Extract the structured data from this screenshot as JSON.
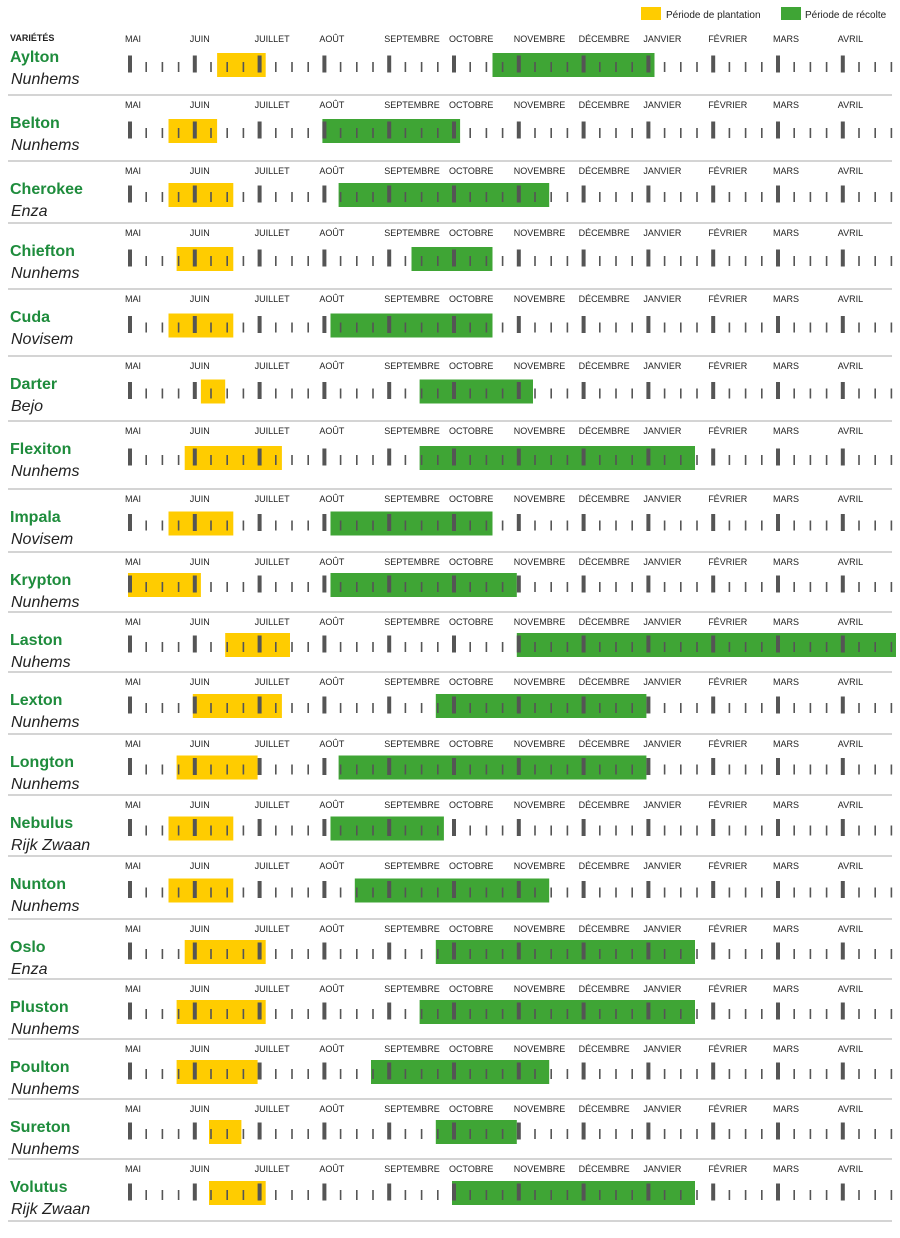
{
  "colors": {
    "planting": "#FFCC00",
    "harvest": "#3FA535",
    "variety_text": "#1E8C3C",
    "tick": "#555555",
    "separator": "#BBBBBB"
  },
  "legend": {
    "planting_label": "Période de plantation",
    "harvest_label": "Période de récolte"
  },
  "header_label": "VARIÉTÉS",
  "chart_data": {
    "type": "gantt",
    "months": [
      "MAI",
      "JUIN",
      "JUILLET",
      "AOÛT",
      "SEPTEMBRE",
      "OCTOBRE",
      "NOVEMBRE",
      "DÉCEMBRE",
      "JANVIER",
      "FÉVRIER",
      "MARS",
      "AVRIL"
    ],
    "unit": "week index from start of May (4 weeks per month, 48 weeks total)",
    "rows": [
      {
        "variety": "Aylton",
        "supplier": "Nunhems",
        "planting": [
          5.5,
          8.5
        ],
        "harvest": [
          22.5,
          32.5
        ]
      },
      {
        "variety": "Belton",
        "supplier": "Nunhems",
        "planting": [
          2.5,
          5.5
        ],
        "harvest": [
          12,
          20.5
        ]
      },
      {
        "variety": "Cherokee",
        "supplier": "Enza",
        "planting": [
          2.5,
          6.5
        ],
        "harvest": [
          13,
          26
        ]
      },
      {
        "variety": "Chiefton",
        "supplier": "Nunhems",
        "planting": [
          3,
          6.5
        ],
        "harvest": [
          17.5,
          22.5
        ]
      },
      {
        "variety": "Cuda",
        "supplier": "Novisem",
        "planting": [
          2.5,
          6.5
        ],
        "harvest": [
          12.5,
          22.5
        ]
      },
      {
        "variety": "Darter",
        "supplier": "Bejo",
        "planting": [
          4.5,
          6
        ],
        "harvest": [
          18,
          25
        ]
      },
      {
        "variety": "Flexiton",
        "supplier": "Nunhems",
        "planting": [
          3.5,
          9.5
        ],
        "harvest": [
          18,
          35
        ]
      },
      {
        "variety": "Impala",
        "supplier": "Novisem",
        "planting": [
          2.5,
          6.5
        ],
        "harvest": [
          12.5,
          22.5
        ]
      },
      {
        "variety": "Krypton",
        "supplier": "Nunhems",
        "planting": [
          0,
          4.5
        ],
        "harvest": [
          12.5,
          24
        ]
      },
      {
        "variety": "Laston",
        "supplier": "Nuhems",
        "planting": [
          6,
          10
        ],
        "harvest": [
          24,
          48
        ]
      },
      {
        "variety": "Lexton",
        "supplier": "Nunhems",
        "planting": [
          4,
          9.5
        ],
        "harvest": [
          19,
          32
        ]
      },
      {
        "variety": "Longton",
        "supplier": "Nunhems",
        "planting": [
          3,
          8
        ],
        "harvest": [
          13,
          32
        ]
      },
      {
        "variety": "Nebulus",
        "supplier": "Rijk Zwaan",
        "planting": [
          2.5,
          6.5
        ],
        "harvest": [
          12.5,
          19.5
        ]
      },
      {
        "variety": "Nunton",
        "supplier": "Nunhems",
        "planting": [
          2.5,
          6.5
        ],
        "harvest": [
          14,
          26
        ]
      },
      {
        "variety": "Oslo",
        "supplier": "Enza",
        "planting": [
          3.5,
          8.5
        ],
        "harvest": [
          19,
          35
        ]
      },
      {
        "variety": "Pluston",
        "supplier": "Nunhems",
        "planting": [
          3,
          8.5
        ],
        "harvest": [
          18,
          35
        ]
      },
      {
        "variety": "Poulton",
        "supplier": "Nunhems",
        "planting": [
          3,
          8
        ],
        "harvest": [
          15,
          26
        ]
      },
      {
        "variety": "Sureton",
        "supplier": "Nunhems",
        "planting": [
          5,
          7
        ],
        "harvest": [
          19,
          24
        ]
      },
      {
        "variety": "Volutus",
        "supplier": "Rijk Zwaan",
        "planting": [
          5,
          8.5
        ],
        "harvest": [
          20,
          35
        ]
      }
    ]
  }
}
